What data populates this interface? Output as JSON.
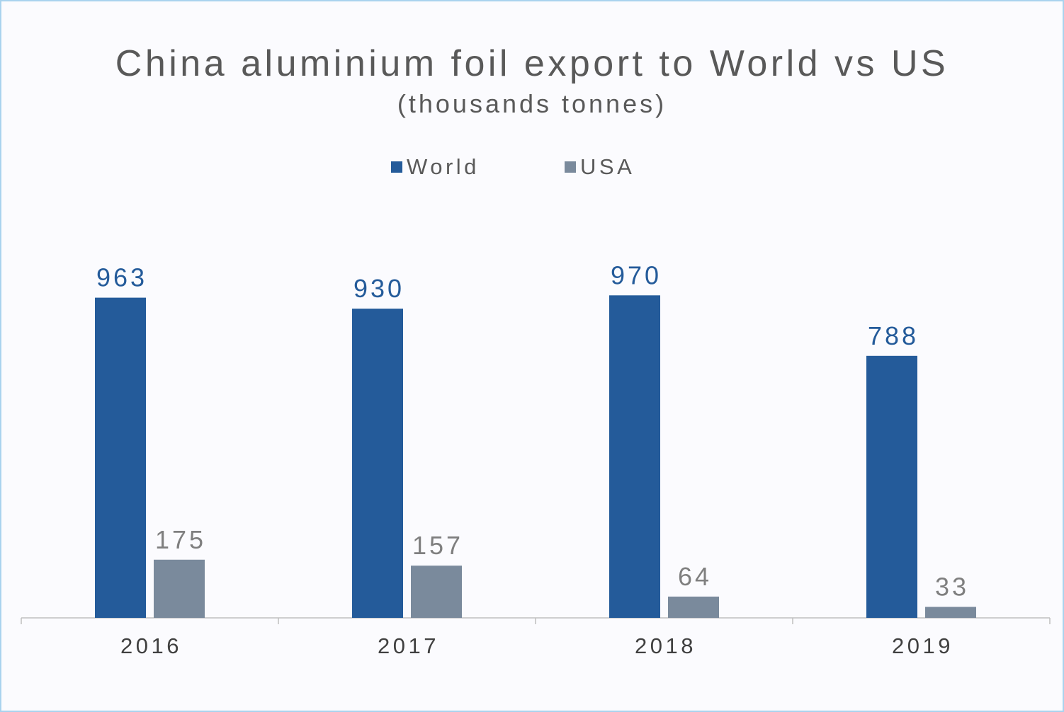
{
  "chart_data": {
    "type": "bar",
    "title": "China aluminium foil export to World vs US",
    "subtitle": "(thousands tonnes)",
    "categories": [
      "2016",
      "2017",
      "2018",
      "2019"
    ],
    "series": [
      {
        "name": "World",
        "values": [
          963,
          930,
          970,
          788
        ],
        "color": "#245b9a",
        "label_color": "#245b9a"
      },
      {
        "name": "USA",
        "values": [
          175,
          157,
          64,
          33
        ],
        "color": "#7a8a9c",
        "label_color": "#7f7f7f"
      }
    ],
    "xlabel": "",
    "ylabel": "",
    "ylim": [
      0,
      1000
    ],
    "grid": false,
    "legend_position": "top-center",
    "data_labels": true
  }
}
